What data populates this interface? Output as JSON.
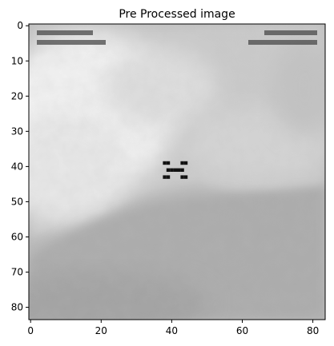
{
  "chart_data": {
    "type": "heatmap",
    "title": "Pre Processed image",
    "colormap": "gray",
    "xlim": [
      -0.5,
      83.5
    ],
    "ylim": [
      83.5,
      -0.5
    ],
    "x_ticks": [
      0,
      20,
      40,
      60,
      80
    ],
    "y_ticks": [
      0,
      10,
      20,
      30,
      40,
      50,
      60,
      70,
      80
    ],
    "x_tick_labels": [
      "0",
      "20",
      "40",
      "60",
      "80"
    ],
    "y_tick_labels": [
      "0",
      "10",
      "20",
      "30",
      "40",
      "50",
      "60",
      "70",
      "80"
    ],
    "xlabel": "",
    "ylabel": "",
    "grid": false,
    "image_size": [
      84,
      84
    ],
    "crosshair_center": [
      41,
      41
    ]
  }
}
